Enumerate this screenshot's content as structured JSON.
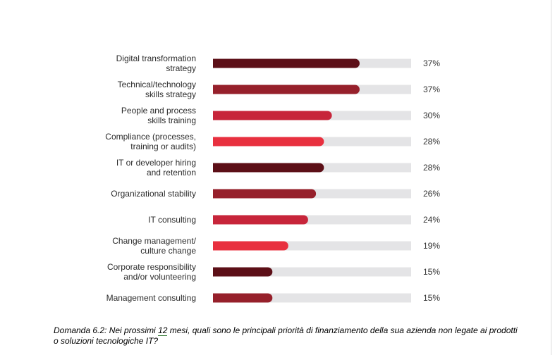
{
  "chart_data": {
    "type": "bar",
    "orientation": "horizontal",
    "categories": [
      [
        "Digital transformation",
        "strategy"
      ],
      [
        "Technical/technology",
        "skills strategy"
      ],
      [
        "People and process",
        "skills training"
      ],
      [
        "Compliance (processes,",
        "training or audits)"
      ],
      [
        "IT or developer hiring",
        "and retention"
      ],
      [
        "Organizational stability"
      ],
      [
        "IT consulting"
      ],
      [
        "Change management/",
        "culture change"
      ],
      [
        "Corporate responsibility",
        "and/or volunteering"
      ],
      [
        "Management consulting"
      ]
    ],
    "values": [
      37,
      37,
      30,
      28,
      28,
      26,
      24,
      19,
      15,
      15
    ],
    "value_labels": [
      "37%",
      "37%",
      "30%",
      "28%",
      "28%",
      "26%",
      "24%",
      "19%",
      "15%",
      "15%"
    ],
    "xlim": [
      0,
      50
    ],
    "bar_colors": [
      "#5c0f17",
      "#96202b",
      "#c7253a",
      "#e8303f",
      "#5c0f17",
      "#96202b",
      "#c7253a",
      "#e8303f",
      "#5c0f17",
      "#96202b"
    ],
    "track_color": "#e4e4e6",
    "grid": false,
    "legend": false
  },
  "caption": {
    "before": "Domanda 6.2: Nei prossimi ",
    "number": "12",
    "after": " mesi, quali sono le principali priorità di finanziamento della sua azienda non legate ai prodotti o soluzioni tecnologiche IT?"
  }
}
